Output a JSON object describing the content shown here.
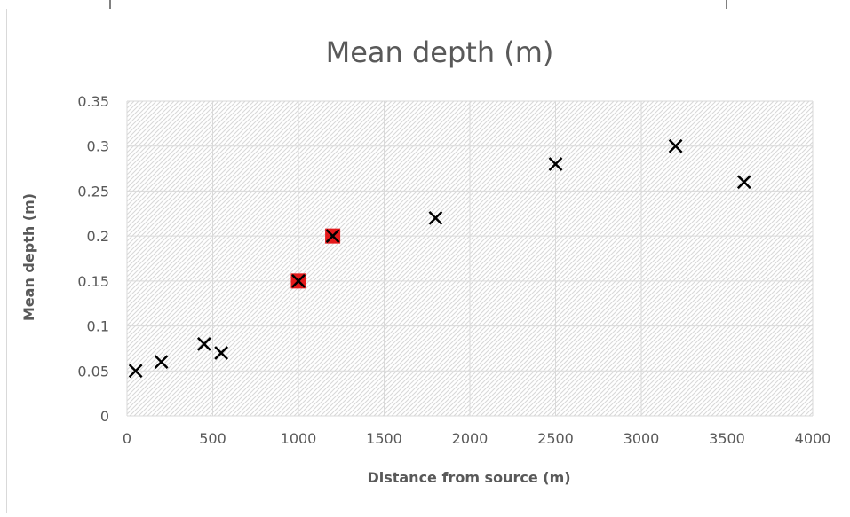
{
  "chart_data": {
    "type": "scatter",
    "title": "Mean depth (m)",
    "xlabel": "Distance from source (m)",
    "ylabel": "Mean depth (m)",
    "xlim": [
      0,
      4000
    ],
    "ylim": [
      0,
      0.35
    ],
    "x_ticks": [
      "0",
      "500",
      "1000",
      "1500",
      "2000",
      "2500",
      "3000",
      "3500",
      "4000"
    ],
    "y_ticks": [
      "0",
      "0.05",
      "0.1",
      "0.15",
      "0.2",
      "0.25",
      "0.3",
      "0.35"
    ],
    "grid": true,
    "legend": "none",
    "colors": {
      "marker": "#000000",
      "highlight": "#e41a1c",
      "grid": "#d9d9d9",
      "text": "#595959"
    },
    "series": [
      {
        "marker": "x",
        "points": [
          {
            "x": 50,
            "y": 0.05
          },
          {
            "x": 200,
            "y": 0.06
          },
          {
            "x": 450,
            "y": 0.08
          },
          {
            "x": 550,
            "y": 0.07
          },
          {
            "x": 1000,
            "y": 0.15,
            "highlight": true
          },
          {
            "x": 1200,
            "y": 0.2,
            "highlight": true
          },
          {
            "x": 1800,
            "y": 0.22
          },
          {
            "x": 2500,
            "y": 0.28
          },
          {
            "x": 3200,
            "y": 0.3
          },
          {
            "x": 3600,
            "y": 0.26
          }
        ]
      }
    ]
  }
}
